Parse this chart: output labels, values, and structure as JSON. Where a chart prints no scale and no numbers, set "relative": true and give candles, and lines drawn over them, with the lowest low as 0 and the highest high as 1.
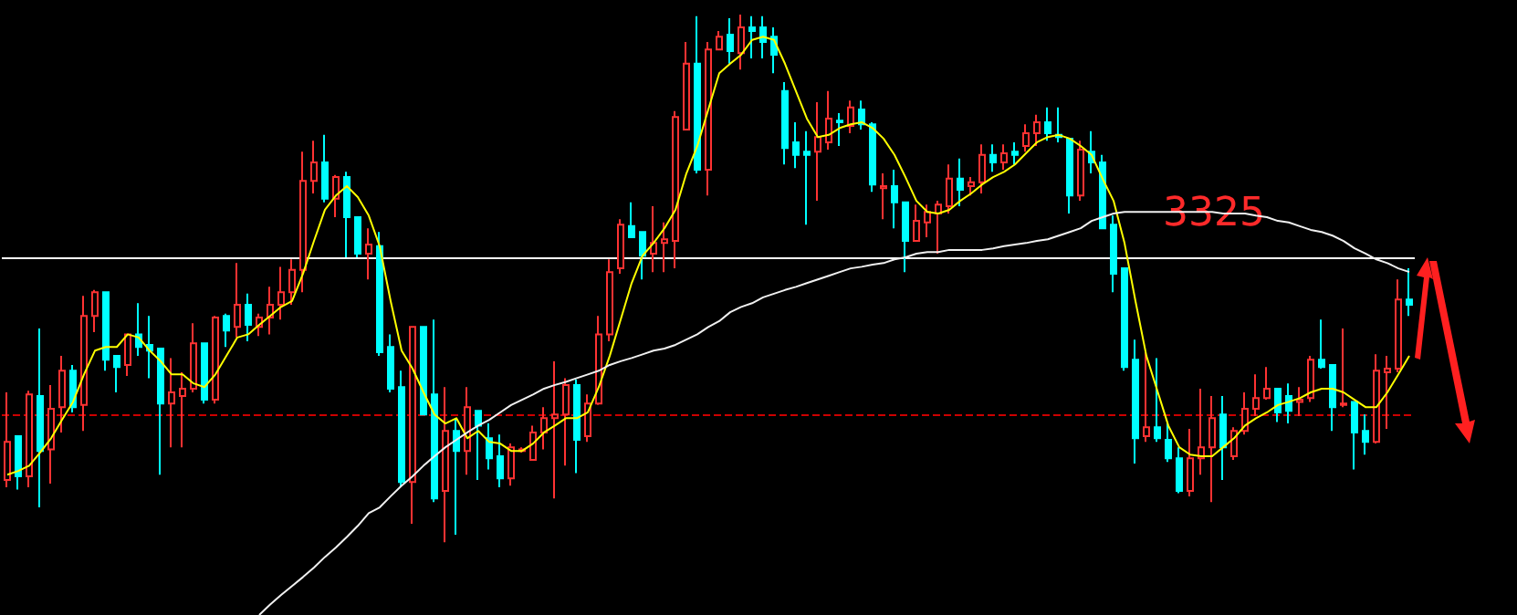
{
  "chart_data": {
    "type": "candlestick",
    "relative": true,
    "grid": false,
    "tick_labels": false,
    "annotations": [
      "3325"
    ],
    "categories": [
      null,
      null,
      null,
      null,
      null,
      null,
      null,
      null,
      null,
      null,
      null,
      null,
      null,
      null,
      null,
      null,
      null,
      null,
      null,
      null,
      null,
      null,
      null,
      null,
      null,
      null,
      null,
      null,
      null,
      null,
      null,
      null,
      null,
      null,
      null,
      null,
      null,
      null,
      null,
      null,
      null,
      null,
      null,
      null,
      null,
      null,
      null,
      null,
      null,
      null,
      null,
      null,
      null,
      null,
      null,
      null,
      null,
      null,
      null,
      null,
      null,
      null,
      null,
      null,
      null,
      null,
      null,
      null,
      null,
      null,
      null,
      null,
      null,
      null,
      null,
      null,
      null,
      null,
      null,
      null,
      null,
      null,
      null,
      null,
      null,
      null,
      null,
      null,
      null,
      null,
      null,
      null,
      null,
      null,
      null,
      null,
      null,
      null,
      null,
      null,
      null,
      null,
      null,
      null,
      null,
      null,
      null,
      null,
      null,
      null,
      null,
      null,
      null,
      null,
      null,
      null,
      null,
      null,
      null,
      null,
      null,
      null,
      null,
      null,
      null,
      null,
      null,
      null,
      null
    ],
    "ohlc": [
      [
        0.118,
        0.284,
        0.104,
        0.19
      ],
      [
        0.201,
        0.201,
        0.1,
        0.125
      ],
      [
        0.125,
        0.287,
        0.104,
        0.28
      ],
      [
        0.277,
        0.405,
        0.066,
        0.173
      ],
      [
        0.176,
        0.298,
        0.111,
        0.253
      ],
      [
        0.256,
        0.353,
        0.208,
        0.325
      ],
      [
        0.325,
        0.336,
        0.246,
        0.256
      ],
      [
        0.26,
        0.467,
        0.211,
        0.429
      ],
      [
        0.429,
        0.478,
        0.398,
        0.474
      ],
      [
        0.474,
        0.474,
        0.325,
        0.346
      ],
      [
        0.353,
        0.353,
        0.284,
        0.332
      ],
      [
        0.336,
        0.394,
        0.315,
        0.394
      ],
      [
        0.394,
        0.453,
        0.353,
        0.37
      ],
      [
        0.374,
        0.429,
        0.311,
        0.363
      ],
      [
        0.367,
        0.367,
        0.128,
        0.263
      ],
      [
        0.263,
        0.349,
        0.18,
        0.284
      ],
      [
        0.277,
        0.322,
        0.18,
        0.291
      ],
      [
        0.291,
        0.415,
        0.284,
        0.377
      ],
      [
        0.377,
        0.377,
        0.263,
        0.27
      ],
      [
        0.27,
        0.429,
        0.263,
        0.426
      ],
      [
        0.429,
        0.433,
        0.37,
        0.401
      ],
      [
        0.408,
        0.529,
        0.388,
        0.45
      ],
      [
        0.45,
        0.471,
        0.381,
        0.412
      ],
      [
        0.408,
        0.433,
        0.391,
        0.426
      ],
      [
        0.426,
        0.484,
        0.394,
        0.45
      ],
      [
        0.45,
        0.522,
        0.422,
        0.474
      ],
      [
        0.474,
        0.536,
        0.45,
        0.516
      ],
      [
        0.516,
        0.74,
        0.474,
        0.685
      ],
      [
        0.685,
        0.761,
        0.661,
        0.72
      ],
      [
        0.72,
        0.772,
        0.644,
        0.651
      ],
      [
        0.651,
        0.696,
        0.616,
        0.692
      ],
      [
        0.692,
        0.702,
        0.54,
        0.616
      ],
      [
        0.616,
        0.616,
        0.54,
        0.547
      ],
      [
        0.547,
        0.595,
        0.498,
        0.564
      ],
      [
        0.561,
        0.588,
        0.353,
        0.36
      ],
      [
        0.37,
        0.394,
        0.284,
        0.291
      ],
      [
        0.294,
        0.325,
        0.104,
        0.114
      ],
      [
        0.114,
        0.408,
        0.035,
        0.408
      ],
      [
        0.408,
        0.408,
        0.242,
        0.242
      ],
      [
        0.28,
        0.422,
        0.076,
        0.083
      ],
      [
        0.097,
        0.294,
        0,
        0.211
      ],
      [
        0.211,
        0.232,
        0.014,
        0.173
      ],
      [
        0.173,
        0.294,
        0.128,
        0.256
      ],
      [
        0.249,
        0.249,
        0.118,
        0.221
      ],
      [
        0.197,
        0.225,
        0.138,
        0.159
      ],
      [
        0.163,
        0.204,
        0.104,
        0.121
      ],
      [
        0.121,
        0.187,
        0.107,
        0.18
      ],
      [
        0.173,
        0.18,
        0.17,
        0.176
      ],
      [
        0.156,
        0.221,
        0.156,
        0.208
      ],
      [
        0.208,
        0.256,
        0.176,
        0.235
      ],
      [
        0.235,
        0.343,
        0.083,
        0.242
      ],
      [
        0.242,
        0.311,
        0.145,
        0.298
      ],
      [
        0.298,
        0.308,
        0.131,
        0.194
      ],
      [
        0.201,
        0.28,
        0.19,
        0.263
      ],
      [
        0.263,
        0.429,
        0.26,
        0.394
      ],
      [
        0.394,
        0.536,
        0.381,
        0.512
      ],
      [
        0.519,
        0.612,
        0.509,
        0.602
      ],
      [
        0.599,
        0.644,
        0.578,
        0.578
      ],
      [
        0.588,
        0.588,
        0.498,
        0.543
      ],
      [
        0.547,
        0.637,
        0.512,
        0.567
      ],
      [
        0.567,
        0.606,
        0.512,
        0.574
      ],
      [
        0.571,
        0.817,
        0.519,
        0.806
      ],
      [
        0.782,
        0.948,
        0.782,
        0.907
      ],
      [
        0.907,
        0.997,
        0.699,
        0.706
      ],
      [
        0.706,
        0.948,
        0.657,
        0.934
      ],
      [
        0.934,
        0.969,
        0.934,
        0.958
      ],
      [
        0.962,
        0.993,
        0.907,
        0.931
      ],
      [
        0.927,
        1,
        0.896,
        0.976
      ],
      [
        0.976,
        0.997,
        0.917,
        0.969
      ],
      [
        0.976,
        0.997,
        0.917,
        0.948
      ],
      [
        0.958,
        0.976,
        0.889,
        0.924
      ],
      [
        0.855,
        0.872,
        0.716,
        0.747
      ],
      [
        0.758,
        0.796,
        0.709,
        0.734
      ],
      [
        0.74,
        0.779,
        0.602,
        0.734
      ],
      [
        0.74,
        0.834,
        0.647,
        0.768
      ],
      [
        0.758,
        0.855,
        0.744,
        0.803
      ],
      [
        0.799,
        0.813,
        0.751,
        0.796
      ],
      [
        0.789,
        0.837,
        0.775,
        0.824
      ],
      [
        0.82,
        0.837,
        0.782,
        0.792
      ],
      [
        0.792,
        0.796,
        0.664,
        0.678
      ],
      [
        0.671,
        0.699,
        0.612,
        0.675
      ],
      [
        0.675,
        0.706,
        0.595,
        0.644
      ],
      [
        0.644,
        0.644,
        0.512,
        0.571
      ],
      [
        0.571,
        0.64,
        0.571,
        0.609
      ],
      [
        0.606,
        0.64,
        0.578,
        0.626
      ],
      [
        0.623,
        0.647,
        0.547,
        0.64
      ],
      [
        0.637,
        0.716,
        0.623,
        0.689
      ],
      [
        0.689,
        0.727,
        0.637,
        0.668
      ],
      [
        0.675,
        0.692,
        0.657,
        0.682
      ],
      [
        0.682,
        0.754,
        0.661,
        0.734
      ],
      [
        0.734,
        0.754,
        0.702,
        0.72
      ],
      [
        0.72,
        0.754,
        0.706,
        0.737
      ],
      [
        0.74,
        0.758,
        0.716,
        0.734
      ],
      [
        0.751,
        0.792,
        0.74,
        0.775
      ],
      [
        0.775,
        0.81,
        0.751,
        0.796
      ],
      [
        0.796,
        0.824,
        0.761,
        0.775
      ],
      [
        0.772,
        0.824,
        0.758,
        0.768
      ],
      [
        0.765,
        0.765,
        0.623,
        0.657
      ],
      [
        0.657,
        0.761,
        0.647,
        0.744
      ],
      [
        0.74,
        0.779,
        0.699,
        0.72
      ],
      [
        0.72,
        0.734,
        0.595,
        0.595
      ],
      [
        0.602,
        0.619,
        0.474,
        0.509
      ],
      [
        0.519,
        0.519,
        0.325,
        0.332
      ],
      [
        0.346,
        0.384,
        0.149,
        0.197
      ],
      [
        0.201,
        0.36,
        0.19,
        0.218
      ],
      [
        0.218,
        0.349,
        0.19,
        0.197
      ],
      [
        0.194,
        0.225,
        0.152,
        0.159
      ],
      [
        0.159,
        0.18,
        0.093,
        0.097
      ],
      [
        0.097,
        0.215,
        0.087,
        0.159
      ],
      [
        0.159,
        0.291,
        0.128,
        0.18
      ],
      [
        0.18,
        0.277,
        0.076,
        0.235
      ],
      [
        0.242,
        0.277,
        0.118,
        0.18
      ],
      [
        0.163,
        0.218,
        0.156,
        0.211
      ],
      [
        0.211,
        0.284,
        0.204,
        0.253
      ],
      [
        0.253,
        0.318,
        0.239,
        0.273
      ],
      [
        0.273,
        0.332,
        0.27,
        0.291
      ],
      [
        0.291,
        0.291,
        0.228,
        0.246
      ],
      [
        0.277,
        0.301,
        0.225,
        0.249
      ],
      [
        0.266,
        0.294,
        0.239,
        0.27
      ],
      [
        0.273,
        0.353,
        0.266,
        0.346
      ],
      [
        0.346,
        0.422,
        0.329,
        0.332
      ],
      [
        0.336,
        0.336,
        0.211,
        0.256
      ],
      [
        0.26,
        0.405,
        0.256,
        0.263
      ],
      [
        0.266,
        0.266,
        0.138,
        0.208
      ],
      [
        0.211,
        0.242,
        0.166,
        0.19
      ],
      [
        0.19,
        0.356,
        0.187,
        0.325
      ],
      [
        0.322,
        0.353,
        0.215,
        0.329
      ],
      [
        0.329,
        0.498,
        0.322,
        0.46
      ],
      [
        0.46,
        0.519,
        0.429,
        0.45
      ]
    ],
    "series": [
      {
        "type": "line",
        "color": "#ffff00",
        "values": [
          0.128,
          0.135,
          0.145,
          0.17,
          0.197,
          0.232,
          0.266,
          0.318,
          0.363,
          0.37,
          0.37,
          0.394,
          0.388,
          0.363,
          0.343,
          0.318,
          0.318,
          0.301,
          0.294,
          0.318,
          0.353,
          0.388,
          0.394,
          0.412,
          0.429,
          0.446,
          0.457,
          0.509,
          0.571,
          0.63,
          0.657,
          0.675,
          0.654,
          0.619,
          0.561,
          0.457,
          0.363,
          0.329,
          0.284,
          0.242,
          0.225,
          0.235,
          0.197,
          0.211,
          0.19,
          0.187,
          0.173,
          0.173,
          0.187,
          0.208,
          0.221,
          0.235,
          0.235,
          0.246,
          0.294,
          0.353,
          0.422,
          0.491,
          0.543,
          0.567,
          0.595,
          0.63,
          0.699,
          0.751,
          0.82,
          0.889,
          0.907,
          0.924,
          0.952,
          0.958,
          0.952,
          0.907,
          0.855,
          0.803,
          0.768,
          0.772,
          0.785,
          0.792,
          0.796,
          0.785,
          0.765,
          0.734,
          0.692,
          0.647,
          0.626,
          0.623,
          0.63,
          0.647,
          0.661,
          0.678,
          0.692,
          0.702,
          0.716,
          0.737,
          0.758,
          0.768,
          0.772,
          0.765,
          0.751,
          0.734,
          0.689,
          0.647,
          0.567,
          0.457,
          0.353,
          0.287,
          0.221,
          0.18,
          0.166,
          0.163,
          0.163,
          0.18,
          0.197,
          0.221,
          0.235,
          0.246,
          0.26,
          0.266,
          0.273,
          0.284,
          0.291,
          0.291,
          0.284,
          0.27,
          0.256,
          0.256,
          0.284,
          0.318,
          0.353
        ]
      },
      {
        "type": "line",
        "color": "#f0f0f0",
        "values": [
          null,
          null,
          null,
          null,
          null,
          null,
          null,
          null,
          null,
          null,
          null,
          null,
          null,
          null,
          null,
          null,
          null,
          null,
          null,
          null,
          null,
          null,
          null,
          -0.138,
          -0.118,
          -0.1,
          -0.083,
          -0.066,
          -0.048,
          -0.028,
          -0.01,
          0.01,
          0.031,
          0.055,
          0.066,
          0.087,
          0.107,
          0.125,
          0.145,
          0.163,
          0.18,
          0.194,
          0.208,
          0.221,
          0.232,
          0.246,
          0.26,
          0.27,
          0.28,
          0.291,
          0.298,
          0.304,
          0.311,
          0.318,
          0.325,
          0.336,
          0.343,
          0.349,
          0.356,
          0.363,
          0.367,
          0.374,
          0.384,
          0.394,
          0.408,
          0.419,
          0.436,
          0.446,
          0.453,
          0.464,
          0.471,
          0.478,
          0.484,
          0.491,
          0.498,
          0.505,
          0.512,
          0.519,
          0.522,
          0.526,
          0.529,
          0.536,
          0.54,
          0.547,
          0.55,
          0.55,
          0.554,
          0.554,
          0.554,
          0.554,
          0.557,
          0.561,
          0.564,
          0.567,
          0.571,
          0.574,
          0.581,
          0.588,
          0.595,
          0.609,
          0.616,
          0.623,
          0.626,
          0.626,
          0.626,
          0.626,
          0.626,
          0.626,
          0.626,
          0.626,
          0.626,
          0.623,
          0.623,
          0.623,
          0.619,
          0.616,
          0.609,
          0.606,
          0.599,
          0.592,
          0.588,
          0.581,
          0.571,
          0.557,
          0.547,
          0.536,
          0.529,
          0.519,
          0.512
        ]
      }
    ],
    "ref_lines": [
      {
        "axis": "y",
        "value": 0.536,
        "color": "#ffffff",
        "line_style": "solid"
      },
      {
        "axis": "y",
        "value": 0.239,
        "color": "#cc0000",
        "line_style": "dashed"
      }
    ]
  }
}
